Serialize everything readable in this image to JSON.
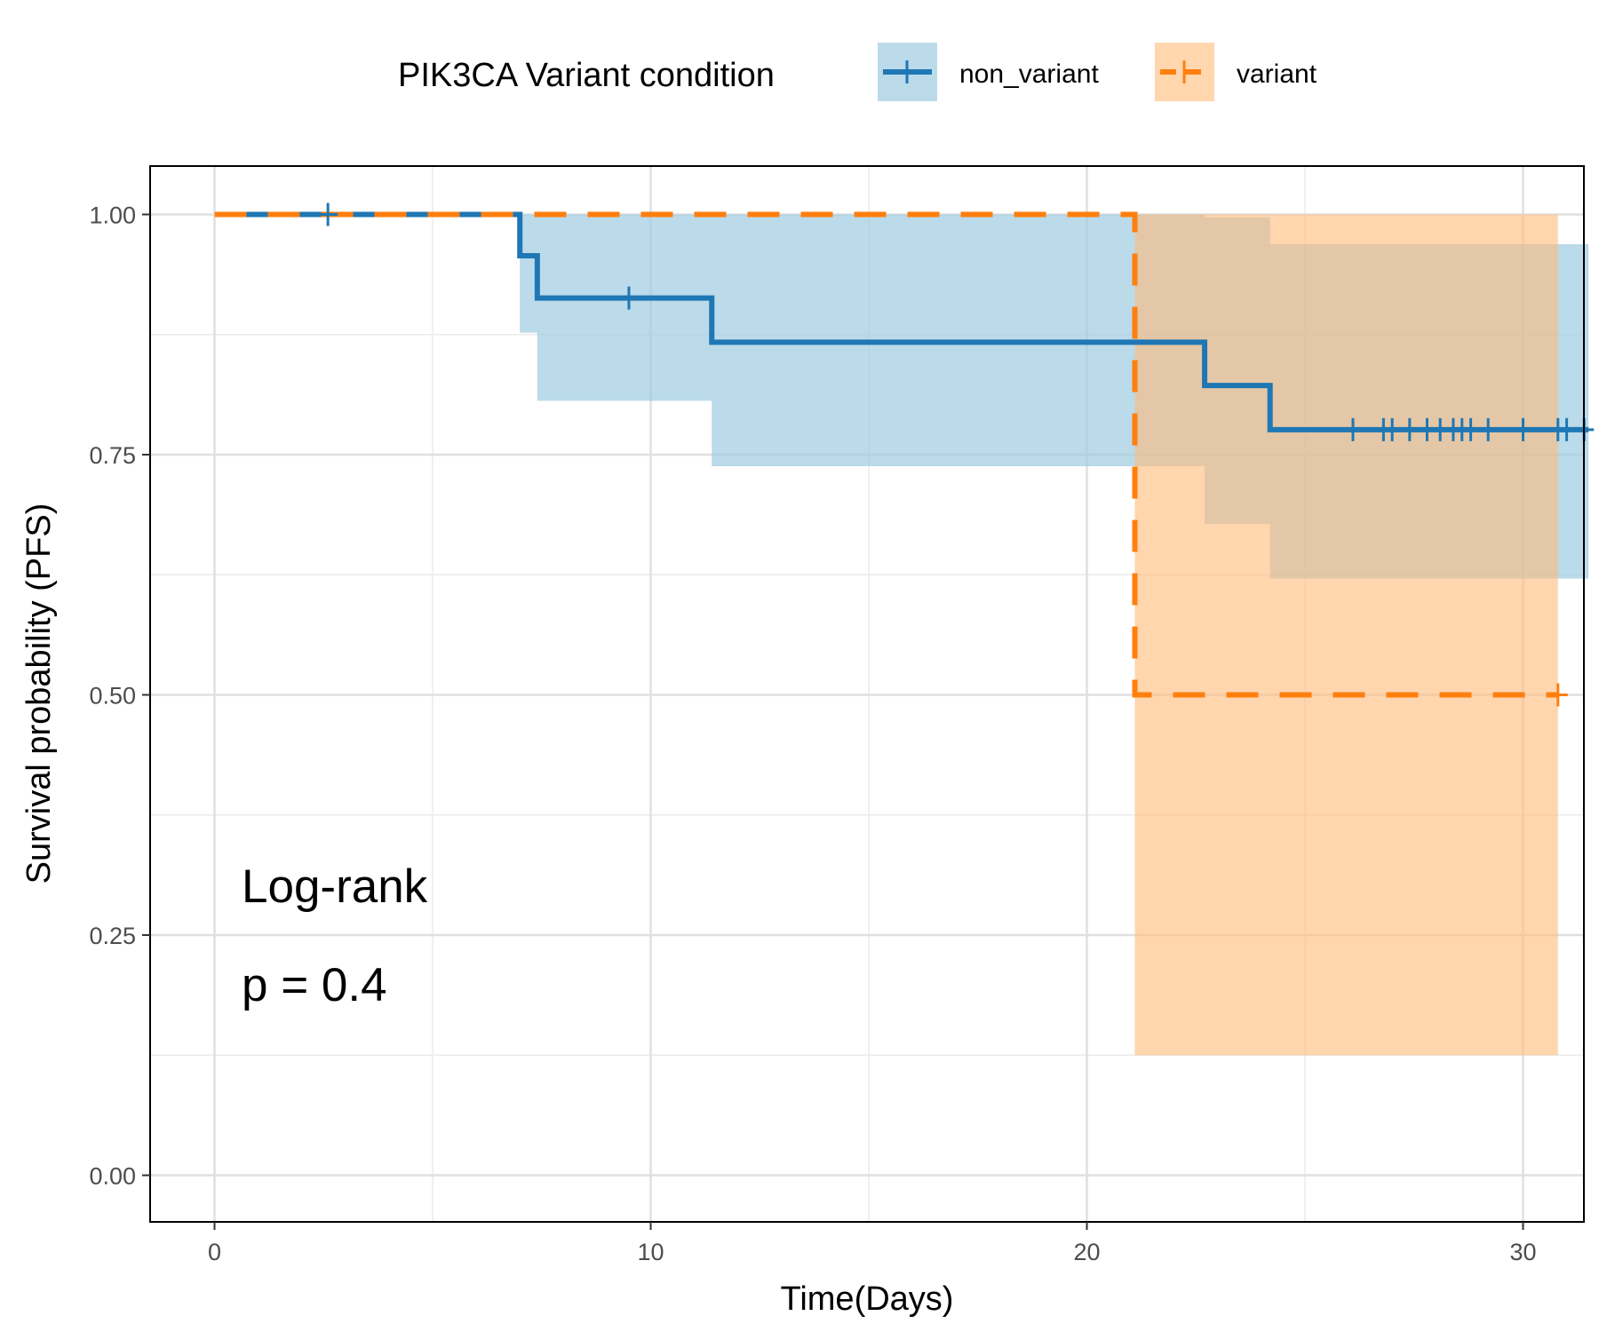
{
  "chart_data": {
    "type": "line",
    "subtype": "kaplan-meier step",
    "xlabel": "Time(Days)",
    "ylabel": "Survival probability (PFS)",
    "xlim": [
      -1.5,
      31.5
    ],
    "ylim": [
      -0.05,
      1.05
    ],
    "x_ticks": [
      0,
      10,
      20,
      30
    ],
    "x_tick_labels": [
      "0",
      "10",
      "20",
      "30"
    ],
    "y_ticks": [
      0,
      0.25,
      0.5,
      0.75,
      1.0
    ],
    "y_tick_labels": [
      "0.00",
      "0.25",
      "0.50",
      "0.75",
      "1.00"
    ],
    "grid": true,
    "legend": {
      "title": "PIK3CA Variant condition",
      "position": "top",
      "entries": [
        "non_variant",
        "variant"
      ]
    },
    "annotations": [
      "Log-rank",
      "p = 0.4"
    ],
    "series": [
      {
        "name": "non_variant",
        "color": "#1f77b4",
        "line_style": "solid",
        "ci_fill": "#9ecae1",
        "ci_opacity": 0.7,
        "steps": [
          {
            "x": 0,
            "y": 1.0,
            "lower": 1.0,
            "upper": 1.0
          },
          {
            "x": 7.0,
            "y": 0.957,
            "lower": 0.877,
            "upper": 1.0
          },
          {
            "x": 7.4,
            "y": 0.913,
            "lower": 0.806,
            "upper": 1.0
          },
          {
            "x": 11.4,
            "y": 0.867,
            "lower": 0.738,
            "upper": 1.0
          },
          {
            "x": 22.7,
            "y": 0.822,
            "lower": 0.678,
            "upper": 0.997
          },
          {
            "x": 24.2,
            "y": 0.776,
            "lower": 0.621,
            "upper": 0.969
          }
        ],
        "end_x": 31.5,
        "censor_times": [
          2.6,
          9.5,
          26.1,
          26.8,
          27.0,
          27.4,
          27.8,
          28.1,
          28.4,
          28.6,
          28.8,
          29.2,
          30.0,
          30.8,
          31.0,
          31.4
        ]
      },
      {
        "name": "variant",
        "color": "#ff7f0e",
        "line_style": "dashed",
        "ci_fill": "#ffbb78",
        "ci_opacity": 0.6,
        "steps": [
          {
            "x": 0,
            "y": 1.0,
            "lower": 1.0,
            "upper": 1.0
          },
          {
            "x": 21.1,
            "y": 0.5,
            "lower": 0.125,
            "upper": 1.0
          }
        ],
        "end_x": 30.8,
        "censor_times": [
          30.8
        ]
      }
    ]
  }
}
